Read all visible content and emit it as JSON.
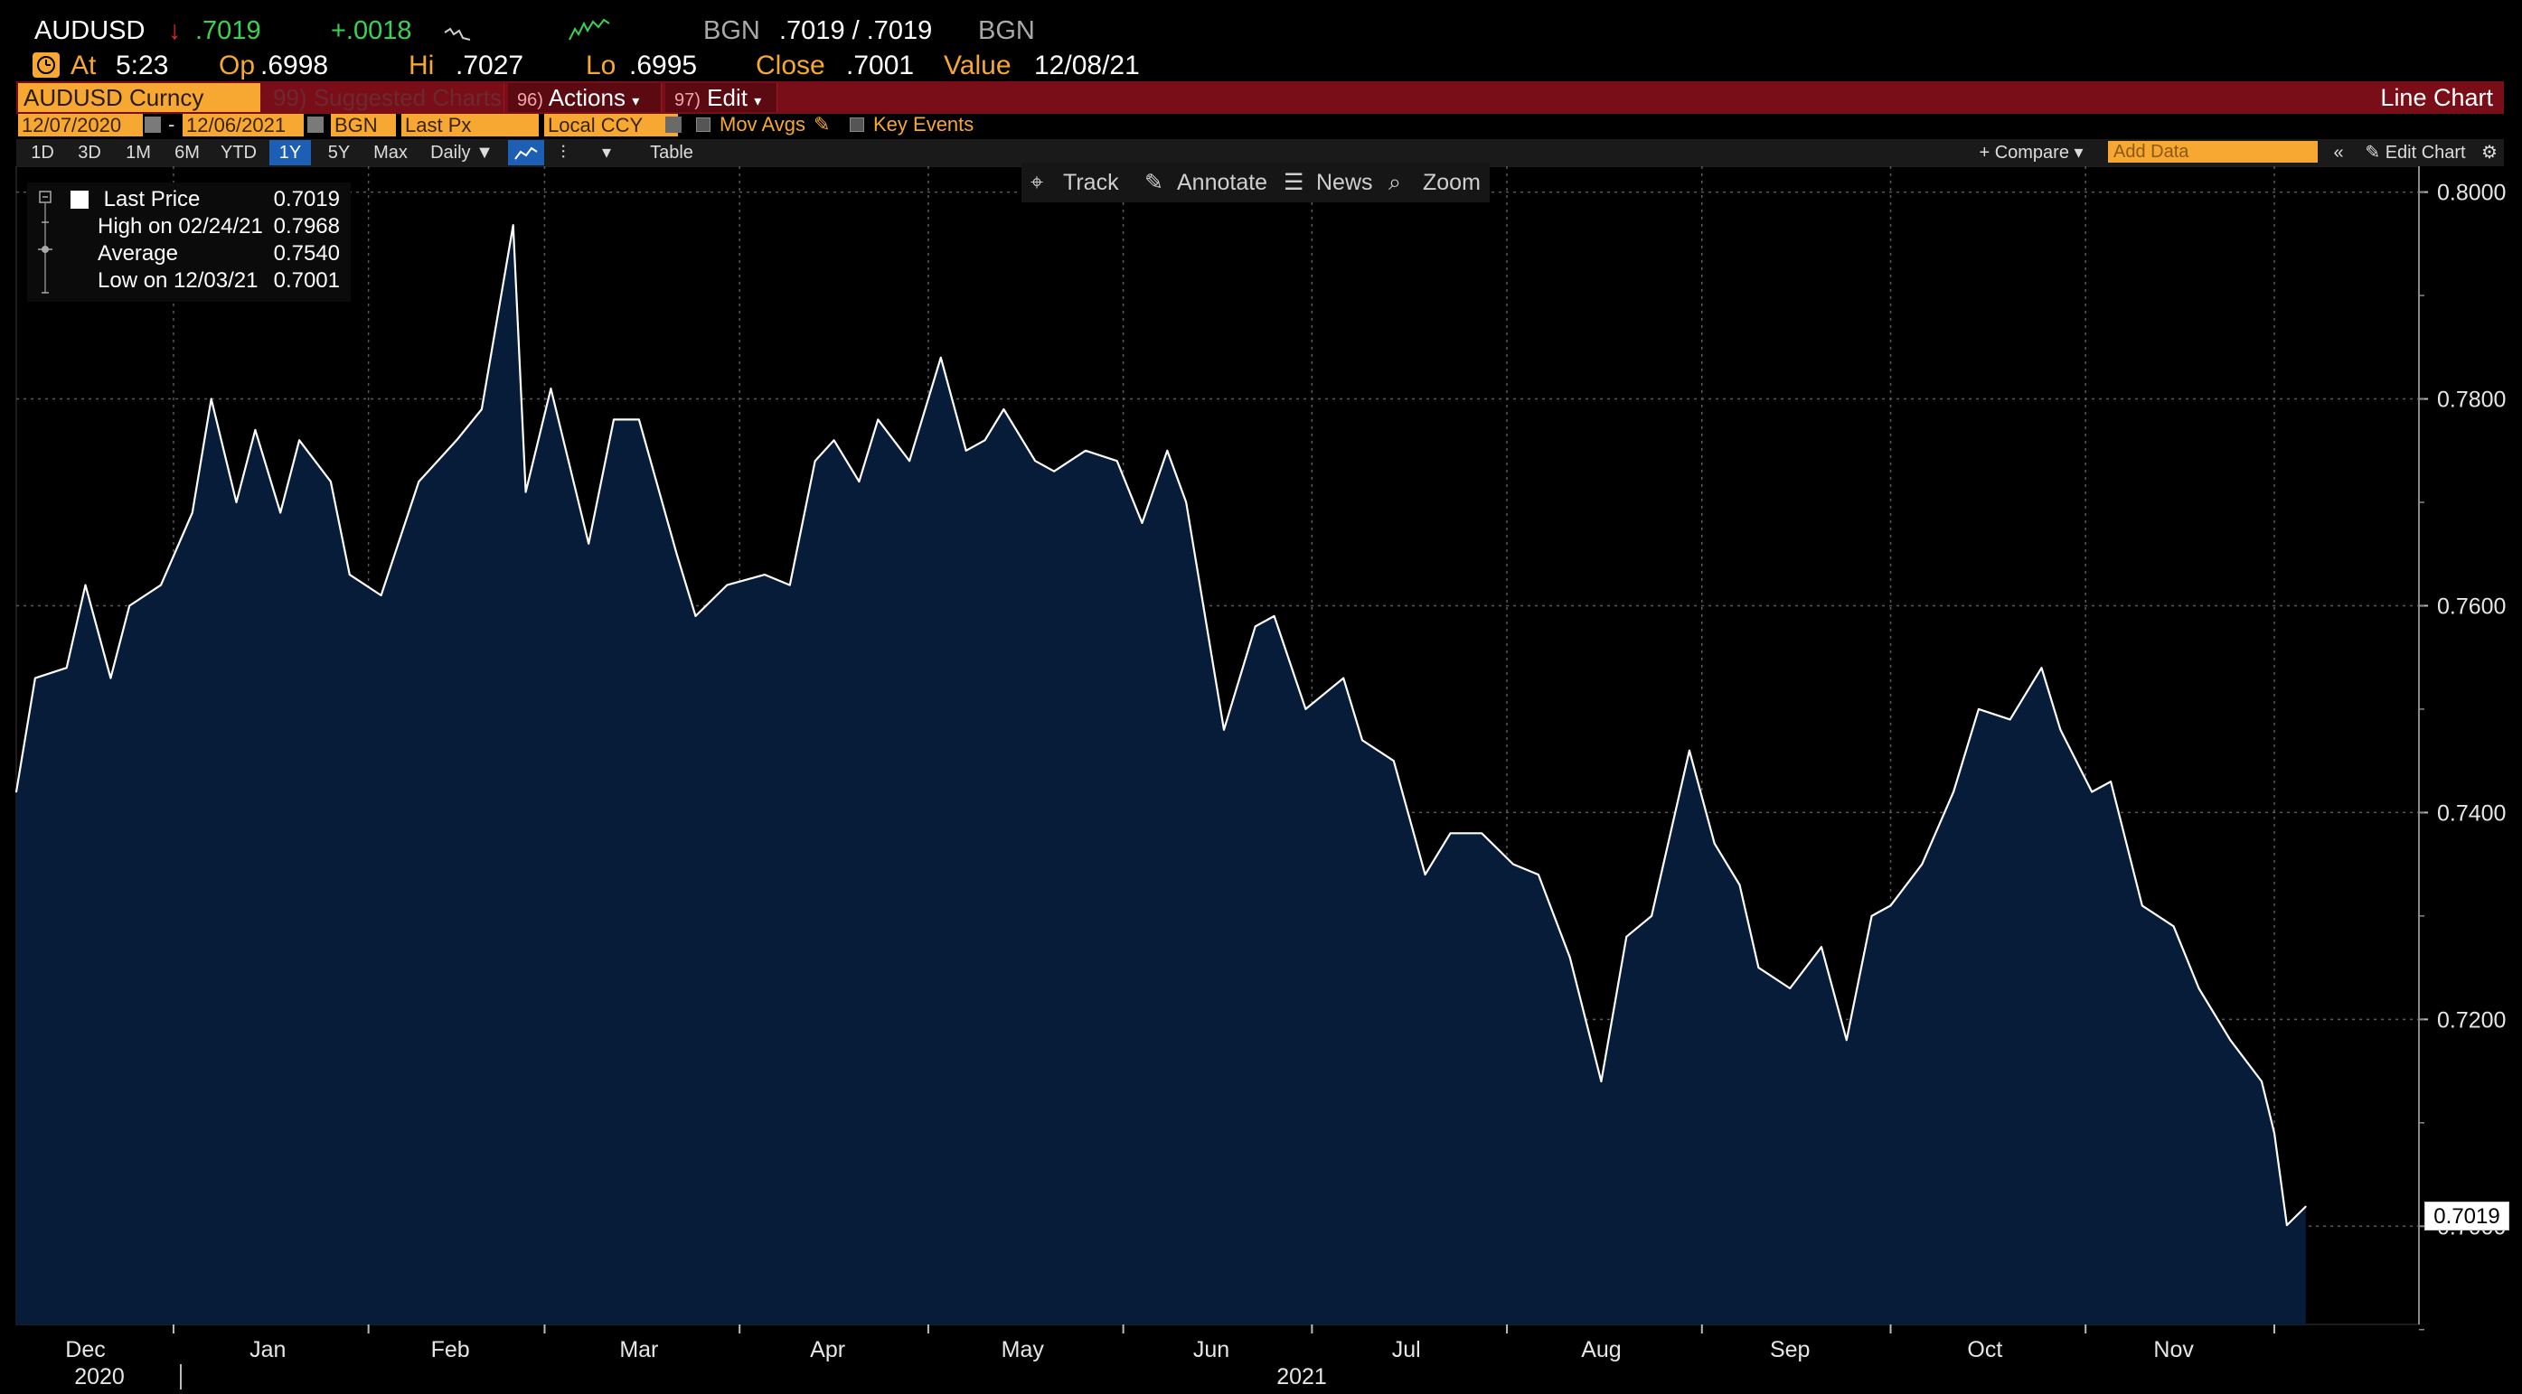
{
  "quote": {
    "ticker": "AUDUSD",
    "last": ".7019",
    "change": "+.0018",
    "source1": "BGN",
    "bid_ask": ".7019 / .7019",
    "source2": "BGN"
  },
  "session": {
    "at_label": "At",
    "at_value": "5:23",
    "op_label": "Op",
    "op_value": ".6998",
    "hi_label": "Hi",
    "hi_value": ".7027",
    "lo_label": "Lo",
    "lo_value": ".6995",
    "close_label": "Close",
    "close_value": ".7001",
    "value_label": "Value",
    "value_value": "12/08/21"
  },
  "redbar": {
    "security": "AUDUSD Curncy",
    "suggested_num": "99)",
    "suggested_label": "Suggested Charts",
    "actions_num": "96)",
    "actions_label": "Actions",
    "edit_num": "97)",
    "edit_label": "Edit",
    "chart_type": "Line Chart"
  },
  "params": {
    "start_date": "12/07/2020",
    "dash": "-",
    "end_date": "12/06/2021",
    "source": "BGN",
    "field": "Last Px",
    "currency": "Local CCY",
    "mov_avgs": "Mov Avgs",
    "key_events": "Key Events"
  },
  "toolbar": {
    "ranges": [
      "1D",
      "3D",
      "1M",
      "6M",
      "YTD",
      "1Y",
      "5Y",
      "Max"
    ],
    "active_range": "1Y",
    "periodicity": "Daily ▼",
    "table": "Table",
    "compare": "+ Compare ▾",
    "add_data_placeholder": "Add Data",
    "edit_chart": "Edit Chart"
  },
  "tools": {
    "track": "Track",
    "annotate": "Annotate",
    "news": "News",
    "zoom": "Zoom"
  },
  "legend": {
    "last_price_label": "Last Price",
    "last_price_value": "0.7019",
    "high_label": "High on 02/24/21",
    "high_value": "0.7968",
    "average_label": "Average",
    "average_value": "0.7540",
    "low_label": "Low on 12/03/21",
    "low_value": "0.7001"
  },
  "price_tag": "0.7019",
  "colors": {
    "accent_orange": "#f7a832",
    "red_bar": "#7a0e18",
    "up_green": "#39d353",
    "down_red": "#e02a2a",
    "area_fill": "#071c38",
    "line": "#ffffff"
  },
  "chart_data": {
    "type": "area",
    "title": "",
    "xlabel": "",
    "ylabel": "",
    "ylim": [
      0.6905,
      0.8025
    ],
    "yticks": [
      0.7,
      0.72,
      0.74,
      0.76,
      0.78,
      0.8
    ],
    "ytick_labels": [
      "0.7000",
      "0.7200",
      "0.7400",
      "0.7600",
      "0.7800",
      "0.8000"
    ],
    "month_labels": [
      "Dec",
      "Jan",
      "Feb",
      "Mar",
      "Apr",
      "May",
      "Jun",
      "Jul",
      "Aug",
      "Sep",
      "Oct",
      "Nov"
    ],
    "year_labels": [
      "2020",
      "2021"
    ],
    "grid": true,
    "series": [
      {
        "x": [
          "2020-12-07",
          "2020-12-10",
          "2020-12-15",
          "2020-12-18",
          "2020-12-22",
          "2020-12-25",
          "2020-12-30",
          "2021-01-04",
          "2021-01-07",
          "2021-01-11",
          "2021-01-14",
          "2021-01-18",
          "2021-01-21",
          "2021-01-26",
          "2021-01-29",
          "2021-02-03",
          "2021-02-09",
          "2021-02-15",
          "2021-02-19",
          "2021-02-24",
          "2021-02-26",
          "2021-03-02",
          "2021-03-08",
          "2021-03-12",
          "2021-03-16",
          "2021-03-22",
          "2021-03-25",
          "2021-03-30",
          "2021-04-05",
          "2021-04-09",
          "2021-04-13",
          "2021-04-16",
          "2021-04-20",
          "2021-04-23",
          "2021-04-28",
          "2021-05-03",
          "2021-05-07",
          "2021-05-10",
          "2021-05-13",
          "2021-05-18",
          "2021-05-21",
          "2021-05-26",
          "2021-05-31",
          "2021-06-04",
          "2021-06-08",
          "2021-06-11",
          "2021-06-17",
          "2021-06-22",
          "2021-06-25",
          "2021-06-30",
          "2021-07-06",
          "2021-07-09",
          "2021-07-14",
          "2021-07-19",
          "2021-07-23",
          "2021-07-28",
          "2021-08-02",
          "2021-08-06",
          "2021-08-11",
          "2021-08-16",
          "2021-08-20",
          "2021-08-24",
          "2021-08-30",
          "2021-09-03",
          "2021-09-07",
          "2021-09-10",
          "2021-09-15",
          "2021-09-20",
          "2021-09-24",
          "2021-09-28",
          "2021-10-01",
          "2021-10-06",
          "2021-10-11",
          "2021-10-15",
          "2021-10-20",
          "2021-10-25",
          "2021-10-28",
          "2021-11-02",
          "2021-11-05",
          "2021-11-10",
          "2021-11-15",
          "2021-11-19",
          "2021-11-24",
          "2021-11-29",
          "2021-12-01",
          "2021-12-03",
          "2021-12-06"
        ],
        "values": [
          0.742,
          0.753,
          0.754,
          0.762,
          0.753,
          0.76,
          0.762,
          0.769,
          0.78,
          0.77,
          0.777,
          0.769,
          0.776,
          0.772,
          0.763,
          0.761,
          0.772,
          0.776,
          0.779,
          0.7968,
          0.771,
          0.781,
          0.766,
          0.778,
          0.778,
          0.765,
          0.759,
          0.762,
          0.763,
          0.762,
          0.774,
          0.776,
          0.772,
          0.778,
          0.774,
          0.784,
          0.775,
          0.776,
          0.779,
          0.774,
          0.773,
          0.775,
          0.774,
          0.768,
          0.775,
          0.77,
          0.748,
          0.758,
          0.759,
          0.75,
          0.753,
          0.747,
          0.745,
          0.734,
          0.738,
          0.738,
          0.735,
          0.734,
          0.726,
          0.714,
          0.728,
          0.73,
          0.746,
          0.737,
          0.733,
          0.725,
          0.723,
          0.727,
          0.718,
          0.73,
          0.731,
          0.735,
          0.742,
          0.75,
          0.749,
          0.754,
          0.748,
          0.742,
          0.743,
          0.731,
          0.729,
          0.723,
          0.718,
          0.714,
          0.709,
          0.7001,
          0.7019
        ]
      }
    ]
  }
}
